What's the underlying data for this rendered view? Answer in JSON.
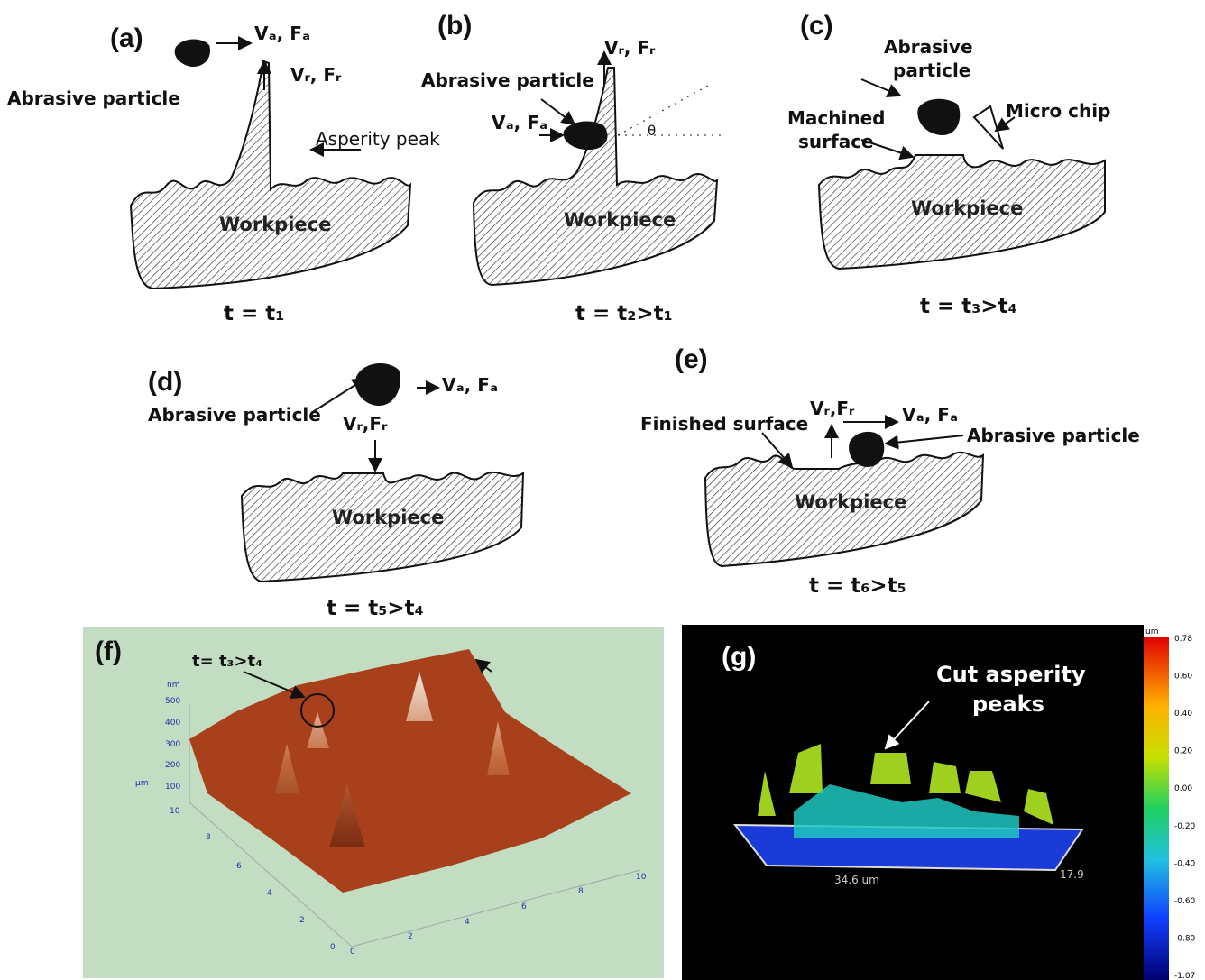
{
  "panels": [
    {
      "label": "(a)",
      "texts": [
        "Vₐ, Fₐ",
        "Vᵣ, Fᵣ",
        "Abrasive particle",
        "Asperity peak",
        "Workpiece"
      ],
      "time": "t = t₁"
    },
    {
      "label": "(b)",
      "texts": [
        "Vᵣ, Fᵣ",
        "Abrasive particle",
        "Vₐ, Fₐ",
        "θ",
        "Workpiece"
      ],
      "time": "t = t₂>t₁"
    },
    {
      "label": "(c)",
      "texts": [
        "Abrasive",
        "particle",
        "Machined",
        "surface",
        "Micro chip",
        "Workpiece"
      ],
      "time": "t = t₃>t₄"
    },
    {
      "label": "(d)",
      "texts": [
        "Abrasive particle",
        "Vₐ, Fₐ",
        "Vᵣ,Fᵣ",
        "Workpiece"
      ],
      "time": "t = t₅>t₄"
    },
    {
      "label": "(e)",
      "texts": [
        "Finished surface",
        "Vᵣ,Fᵣ",
        "Vₐ, Fₐ",
        "Abrasive particle",
        "Workpiece"
      ],
      "time": "t = t₆>t₅"
    }
  ],
  "afm": {
    "label": "(f)",
    "annotation": "t= t₃>t₄",
    "z_unit": "nm",
    "z_ticks": [
      500,
      400,
      300,
      200,
      100
    ],
    "y_unit": "µm",
    "y_ticks": [
      10,
      8,
      6,
      4,
      2,
      0
    ],
    "x_ticks": [
      0,
      2,
      4,
      6,
      8,
      10
    ]
  },
  "profile": {
    "label": "(g)",
    "annotation": [
      "Cut asperity",
      "peaks"
    ],
    "x_length": "34.6 um",
    "y_length": "17.9",
    "colorbar_unit": "um",
    "colorbar_ticks": [
      "0.78",
      "0.60",
      "0.40",
      "0.20",
      "0.00",
      "-0.20",
      "-0.40",
      "-0.60",
      "-0.80",
      "-1.07"
    ]
  }
}
